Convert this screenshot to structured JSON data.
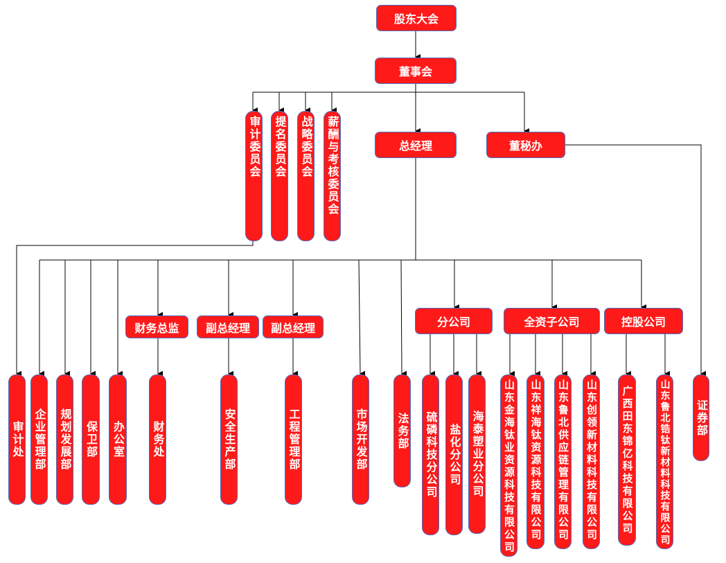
{
  "colors": {
    "box_fill": "#ff1a1a",
    "box_border": "#4a6fc2",
    "text": "#ffffff",
    "line": "#000000"
  },
  "top": {
    "shareholders": "股东大会",
    "board": "董事会",
    "gm": "总经理",
    "board_secretary": "董秘办"
  },
  "committees": [
    "审计委员会",
    "提名委员会",
    "战略委员会",
    "薪酬与考核委员会"
  ],
  "managers": {
    "cfo": "财务总监",
    "vp1": "副总经理",
    "vp2": "副总经理"
  },
  "groups": {
    "branches": "分公司",
    "wholly_owned": "全资子公司",
    "holding": "控股公司"
  },
  "departments": [
    "审计处",
    "企业管理部",
    "规划发展部",
    "保卫部",
    "办公室",
    "财务处",
    "安全生产部",
    "工程管理部",
    "市场开发部",
    "法务部"
  ],
  "branches": [
    "硫磷科技分公司",
    "盐化分公司",
    "海泰塑业分公司"
  ],
  "wholly_owned": [
    "山东金海钛业资源科技有限公司",
    "山东祥海钛资源科技有限公司",
    "山东鲁北供应链管理有限公司",
    "山东创领新材料科技有限公司"
  ],
  "holding": [
    "广西田东锦亿科技有限公司",
    "山东鲁北锆钛新材料科技有限公司"
  ],
  "securities": "证券部"
}
